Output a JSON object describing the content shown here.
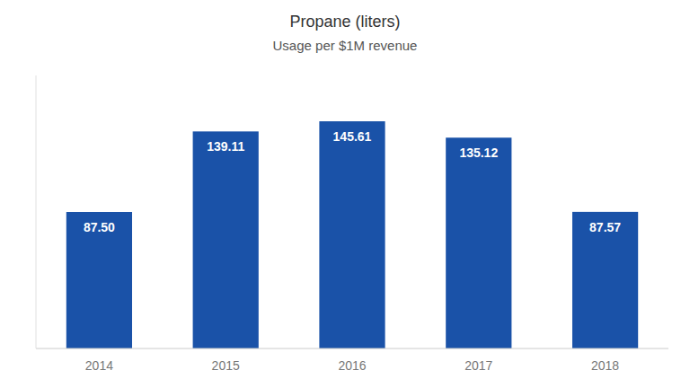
{
  "chart_data": {
    "type": "bar",
    "title": "Propane (liters)",
    "subtitle": "Usage per $1M revenue",
    "categories": [
      "2014",
      "2015",
      "2016",
      "2017",
      "2018"
    ],
    "values": [
      87.5,
      139.11,
      145.61,
      135.12,
      87.57
    ],
    "value_labels": [
      "87.50",
      "139.11",
      "145.61",
      "135.12",
      "87.57"
    ],
    "color": "#1a52a8",
    "ylim": [
      0,
      175
    ],
    "grid": false,
    "data_labels": true,
    "tick_labels": "x"
  }
}
